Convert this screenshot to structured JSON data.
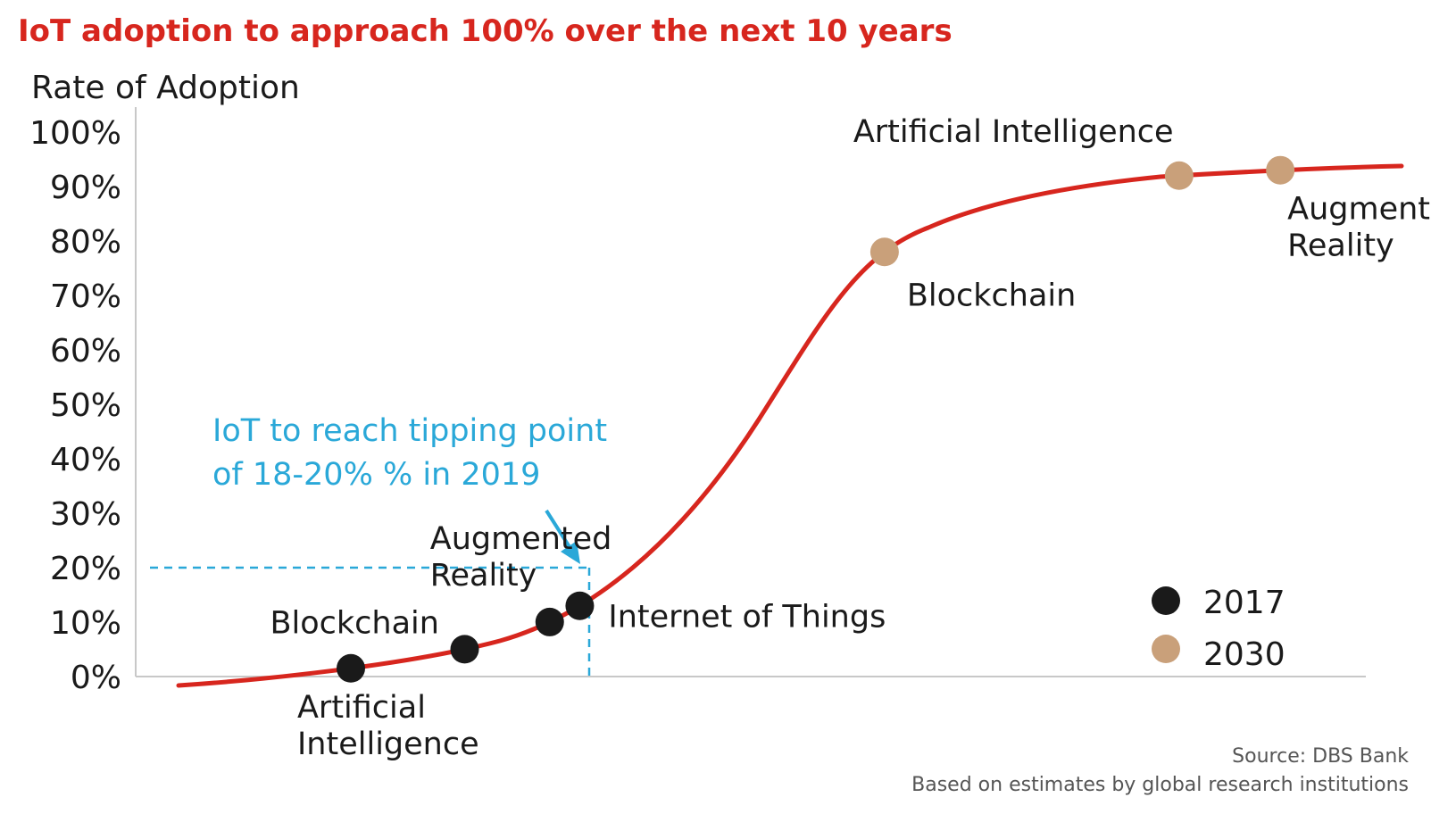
{
  "chart_data": {
    "type": "line",
    "title": "IoT adoption to approach 100% over the next 10 years",
    "ylabel": "Rate of Adoption",
    "xlabel": "",
    "ylim": [
      0,
      100
    ],
    "y_ticks": [
      "0%",
      "10%",
      "20%",
      "30%",
      "40%",
      "50%",
      "60%",
      "70%",
      "80%",
      "90%",
      "100%"
    ],
    "grid": false,
    "curve_color": "#d7261e",
    "series": [
      {
        "name": "2017",
        "color": "#1a1a1a",
        "points": [
          {
            "label": [
              "Artificial",
              "Intelligence"
            ],
            "y": 1.5
          },
          {
            "label": [
              "Blockchain"
            ],
            "y": 5
          },
          {
            "label": [
              "Augmented",
              "Reality"
            ],
            "y": 10
          },
          {
            "label": [
              "Internet of Things"
            ],
            "y": 13
          }
        ]
      },
      {
        "name": "2030",
        "color": "#c9a07a",
        "points": [
          {
            "label": [
              "Blockchain"
            ],
            "y": 78
          },
          {
            "label": [
              "Artificial Intelligence"
            ],
            "y": 92
          },
          {
            "label": [
              "Augmented",
              "Reality"
            ],
            "y": 93
          }
        ]
      }
    ],
    "annotation": {
      "lines": [
        "IoT to reach tipping point",
        "of 18-20% % in 2019"
      ],
      "tipping_value": 20,
      "color": "#2aa8d8"
    },
    "legend": {
      "placement": "bottom-right",
      "entries": [
        {
          "label": "2017",
          "color": "#1a1a1a"
        },
        {
          "label": "2030",
          "color": "#c9a07a"
        }
      ]
    }
  },
  "source": {
    "line1": "Source: DBS Bank",
    "line2": "Based on estimates by global research institutions"
  }
}
